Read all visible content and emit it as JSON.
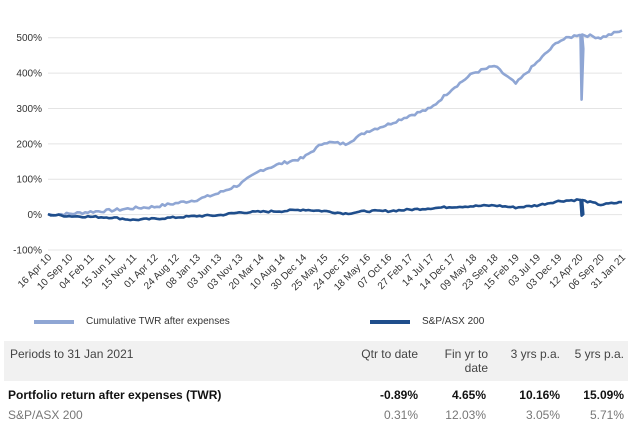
{
  "chart_data": {
    "type": "line",
    "y_ticks": [
      "-100%",
      "0%",
      "100%",
      "200%",
      "300%",
      "400%",
      "500%"
    ],
    "y_tick_values": [
      -100,
      0,
      100,
      200,
      300,
      400,
      500
    ],
    "ylim": [
      -100,
      550
    ],
    "x_tick_labels": [
      "16 Apr 10",
      "10 Sep 10",
      "04 Feb 11",
      "15 Jun 11",
      "15 Nov 11",
      "01 Apr 12",
      "24 Aug 12",
      "08 Jan 13",
      "03 Jun 13",
      "03 Nov 13",
      "20 Mar 14",
      "10 Aug 14",
      "30 Dec 14",
      "25 May 15",
      "24 Dec 15",
      "18 May 16",
      "07 Oct 16",
      "27 Feb 17",
      "14 Jul 17",
      "14 Dec 17",
      "09 May 18",
      "23 Sep 18",
      "15 Feb 19",
      "03 Jul 19",
      "03 Dec 19",
      "12 Apr 20",
      "06 Sep 20",
      "31 Jan 21"
    ],
    "series": [
      {
        "name": "Cumulative TWR after expenses",
        "color": "#8fa6d4",
        "x_index": [
          0,
          1,
          2,
          3,
          4,
          5,
          6,
          7,
          8,
          9,
          10,
          11,
          12,
          13,
          14,
          15,
          16,
          17,
          18,
          19,
          20,
          21,
          22,
          23,
          24,
          25,
          26,
          27
        ],
        "values": [
          0,
          2,
          8,
          12,
          18,
          22,
          32,
          42,
          60,
          85,
          125,
          145,
          160,
          205,
          200,
          235,
          255,
          280,
          300,
          355,
          400,
          420,
          370,
          430,
          490,
          510,
          500,
          520
        ]
      },
      {
        "name": "S&P/ASX 200",
        "color": "#1f4e8c",
        "x_index": [
          0,
          1,
          2,
          3,
          4,
          5,
          6,
          7,
          8,
          9,
          10,
          11,
          12,
          13,
          14,
          15,
          16,
          17,
          18,
          19,
          20,
          21,
          22,
          23,
          24,
          25,
          26,
          27
        ],
        "values": [
          0,
          -4,
          -6,
          -8,
          -15,
          -12,
          -8,
          -4,
          -2,
          6,
          8,
          10,
          14,
          10,
          3,
          10,
          10,
          14,
          18,
          22,
          24,
          26,
          20,
          26,
          38,
          42,
          28,
          35
        ]
      }
    ],
    "special_points": {
      "twr_dip": {
        "x_index": 25.1,
        "value": 325
      },
      "asx_dip": {
        "x_index": 25.1,
        "value": -3
      }
    }
  },
  "legend": [
    {
      "label": "Cumulative TWR after expenses",
      "color": "#8fa6d4"
    },
    {
      "label": "S&P/ASX 200",
      "color": "#1f4e8c"
    }
  ],
  "table": {
    "header": {
      "period": "Periods to 31 Jan 2021",
      "qtd": "Qtr to date",
      "fy_line1": "Fin yr to",
      "fy_line2": "date",
      "y3": "3 yrs p.a.",
      "y5": "5 yrs p.a."
    },
    "rows": [
      {
        "label": "Portfolio return after expenses (TWR)",
        "qtd": "-0.89%",
        "fy": "4.65%",
        "y3": "10.16%",
        "y5": "15.09%"
      },
      {
        "label": "S&P/ASX 200",
        "qtd": "0.31%",
        "fy": "12.03%",
        "y3": "3.05%",
        "y5": "5.71%"
      }
    ]
  }
}
